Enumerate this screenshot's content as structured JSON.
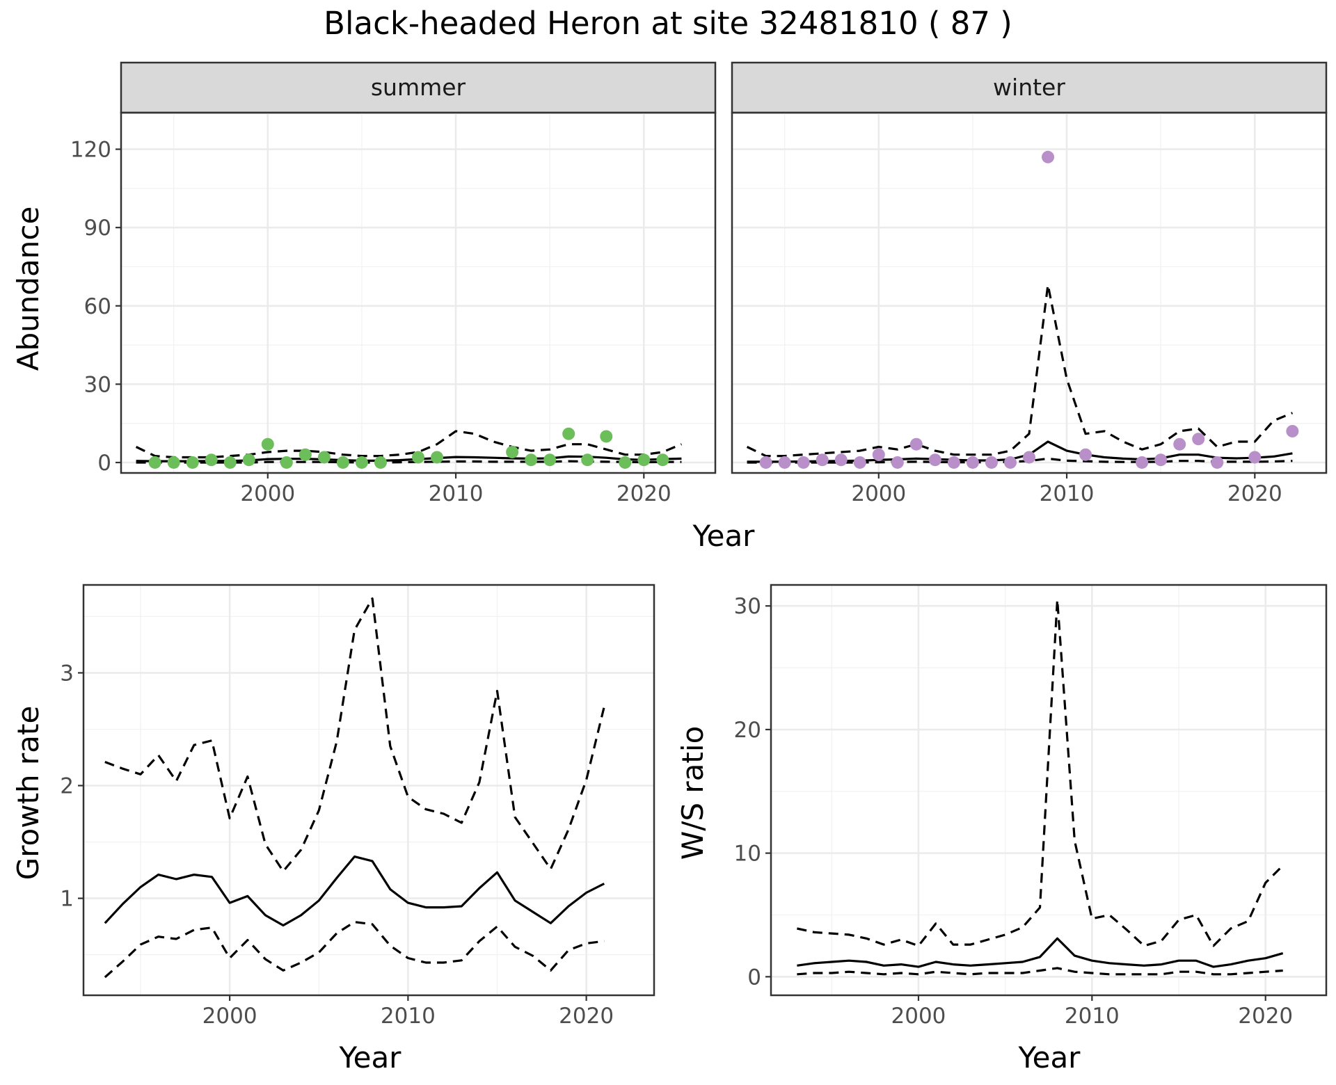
{
  "title": "Black-headed Heron at site 32481810 ( 87 )",
  "chart_data": [
    {
      "id": "abundance",
      "type": "scatter",
      "ylabel": "Abundance",
      "xlabel": "Year",
      "xlim": [
        1992.2,
        2023.8
      ],
      "ylim": [
        -4,
        134
      ],
      "xticks": [
        2000,
        2010,
        2020
      ],
      "yticks": [
        0,
        30,
        60,
        90,
        120
      ],
      "panels": [
        {
          "label": "summer",
          "point_color": "#6cbe5b",
          "points": {
            "x": [
              1994,
              1995,
              1996,
              1997,
              1998,
              1999,
              2000,
              2001,
              2002,
              2003,
              2004,
              2005,
              2006,
              2008,
              2009,
              2013,
              2014,
              2015,
              2016,
              2017,
              2018,
              2019,
              2020,
              2021
            ],
            "y": [
              0,
              0,
              0,
              1,
              0,
              1,
              7,
              0,
              3,
              2,
              0,
              0,
              0,
              2,
              2,
              4,
              1,
              1,
              11,
              1,
              10,
              0,
              1,
              1
            ]
          },
          "mean": {
            "x": [
              1993,
              1994,
              1995,
              1996,
              1997,
              1998,
              1999,
              2000,
              2001,
              2002,
              2003,
              2004,
              2005,
              2006,
              2007,
              2008,
              2009,
              2010,
              2011,
              2012,
              2013,
              2014,
              2015,
              2016,
              2017,
              2018,
              2019,
              2020,
              2021,
              2022
            ],
            "y": [
              0.6,
              0.5,
              0.5,
              0.5,
              0.6,
              0.6,
              0.8,
              1.3,
              1.4,
              1.4,
              1.2,
              0.9,
              0.7,
              0.7,
              0.9,
              1.3,
              1.7,
              2.1,
              2.0,
              1.8,
              1.6,
              1.5,
              1.6,
              2.3,
              2.2,
              1.8,
              1.2,
              1.0,
              1.3,
              1.5
            ]
          },
          "lower": {
            "x": [
              1993,
              1994,
              1995,
              1996,
              1997,
              1998,
              1999,
              2000,
              2001,
              2002,
              2003,
              2004,
              2005,
              2006,
              2007,
              2008,
              2009,
              2010,
              2011,
              2012,
              2013,
              2014,
              2015,
              2016,
              2017,
              2018,
              2019,
              2020,
              2021,
              2022
            ],
            "y": [
              0,
              0,
              0,
              0,
              0,
              0,
              0,
              0.2,
              0.2,
              0.2,
              0.2,
              0.1,
              0,
              0,
              0.1,
              0.2,
              0.3,
              0.4,
              0.4,
              0.3,
              0.3,
              0.3,
              0.3,
              0.5,
              0.4,
              0.3,
              0.2,
              0.1,
              0.2,
              0.2
            ]
          },
          "upper": {
            "x": [
              1993,
              1994,
              1995,
              1996,
              1997,
              1998,
              1999,
              2000,
              2001,
              2002,
              2003,
              2004,
              2005,
              2006,
              2007,
              2008,
              2009,
              2010,
              2011,
              2012,
              2013,
              2014,
              2015,
              2016,
              2017,
              2018,
              2019,
              2020,
              2021,
              2022
            ],
            "y": [
              6,
              2.5,
              2,
              2,
              2,
              2.5,
              3,
              4,
              4.5,
              4.5,
              4,
              3,
              2.5,
              2.5,
              3,
              4,
              7,
              12,
              11,
              8,
              6,
              4.5,
              5,
              7,
              7,
              5,
              3,
              3,
              4,
              7
            ]
          }
        },
        {
          "label": "winter",
          "point_color": "#b98fc9",
          "points": {
            "x": [
              1994,
              1995,
              1996,
              1997,
              1998,
              1999,
              2000,
              2001,
              2002,
              2003,
              2004,
              2005,
              2006,
              2007,
              2008,
              2009,
              2011,
              2014,
              2015,
              2016,
              2017,
              2018,
              2020,
              2022
            ],
            "y": [
              0,
              0,
              0,
              1,
              1,
              0,
              3,
              0,
              7,
              1,
              0,
              0,
              0,
              0,
              2,
              117,
              3,
              0,
              1,
              7,
              9,
              0,
              2,
              12
            ]
          },
          "mean": {
            "x": [
              1993,
              1994,
              1995,
              1996,
              1997,
              1998,
              1999,
              2000,
              2001,
              2002,
              2003,
              2004,
              2005,
              2006,
              2007,
              2008,
              2009,
              2010,
              2011,
              2012,
              2013,
              2014,
              2015,
              2016,
              2017,
              2018,
              2019,
              2020,
              2021,
              2022
            ],
            "y": [
              0.3,
              0.3,
              0.3,
              0.4,
              0.5,
              0.6,
              0.7,
              1.0,
              1.2,
              1.5,
              1.3,
              1.0,
              0.8,
              0.8,
              1.2,
              3.0,
              8.0,
              4.5,
              3.0,
              2.0,
              1.5,
              1.2,
              1.6,
              3.0,
              3.0,
              1.8,
              1.6,
              1.8,
              2.3,
              3.5
            ]
          },
          "lower": {
            "x": [
              1993,
              1994,
              1995,
              1996,
              1997,
              1998,
              1999,
              2000,
              2001,
              2002,
              2003,
              2004,
              2005,
              2006,
              2007,
              2008,
              2009,
              2010,
              2011,
              2012,
              2013,
              2014,
              2015,
              2016,
              2017,
              2018,
              2019,
              2020,
              2021,
              2022
            ],
            "y": [
              0,
              0,
              0,
              0,
              0,
              0,
              0,
              0.1,
              0.2,
              0.3,
              0.2,
              0.1,
              0.1,
              0.1,
              0.2,
              0.6,
              1.5,
              0.7,
              0.5,
              0.3,
              0.2,
              0.2,
              0.3,
              0.6,
              0.6,
              0.3,
              0.3,
              0.3,
              0.4,
              0.6
            ]
          },
          "upper": {
            "x": [
              1993,
              1994,
              1995,
              1996,
              1997,
              1998,
              1999,
              2000,
              2001,
              2002,
              2003,
              2004,
              2005,
              2006,
              2007,
              2008,
              2009,
              2010,
              2011,
              2012,
              2013,
              2014,
              2015,
              2016,
              2017,
              2018,
              2019,
              2020,
              2021,
              2022
            ],
            "y": [
              6,
              2.5,
              2.5,
              3,
              3.5,
              4,
              4.5,
              6,
              5,
              7,
              4.5,
              3,
              3,
              3,
              4.5,
              11,
              68,
              32,
              11,
              12,
              8,
              5,
              7,
              12,
              13,
              6,
              8,
              8,
              16,
              19
            ]
          }
        }
      ]
    },
    {
      "id": "growth",
      "type": "line",
      "ylabel": "Growth rate",
      "xlabel": "Year",
      "xlim": [
        1991.8,
        2023.8
      ],
      "ylim": [
        0.14,
        3.78
      ],
      "xticks": [
        2000,
        2010,
        2020
      ],
      "yticks": [
        1,
        2,
        3
      ],
      "mean": {
        "x": [
          1993,
          1994,
          1995,
          1996,
          1997,
          1998,
          1999,
          2000,
          2001,
          2002,
          2003,
          2004,
          2005,
          2006,
          2007,
          2008,
          2009,
          2010,
          2011,
          2012,
          2013,
          2014,
          2015,
          2016,
          2017,
          2018,
          2019,
          2020,
          2021
        ],
        "y": [
          0.78,
          0.95,
          1.1,
          1.21,
          1.17,
          1.21,
          1.19,
          0.96,
          1.02,
          0.85,
          0.76,
          0.85,
          0.98,
          1.18,
          1.37,
          1.33,
          1.08,
          0.96,
          0.92,
          0.92,
          0.93,
          1.09,
          1.23,
          0.98,
          0.88,
          0.78,
          0.93,
          1.05,
          1.13
        ]
      },
      "lower": {
        "x": [
          1993,
          1994,
          1995,
          1996,
          1997,
          1998,
          1999,
          2000,
          2001,
          2002,
          2003,
          2004,
          2005,
          2006,
          2007,
          2008,
          2009,
          2010,
          2011,
          2012,
          2013,
          2014,
          2015,
          2016,
          2017,
          2018,
          2019,
          2020,
          2021
        ],
        "y": [
          0.3,
          0.44,
          0.59,
          0.66,
          0.64,
          0.72,
          0.74,
          0.47,
          0.63,
          0.46,
          0.36,
          0.43,
          0.52,
          0.69,
          0.79,
          0.77,
          0.58,
          0.47,
          0.43,
          0.43,
          0.45,
          0.62,
          0.75,
          0.57,
          0.49,
          0.36,
          0.54,
          0.6,
          0.62
        ]
      },
      "upper": {
        "x": [
          1993,
          1994,
          1995,
          1996,
          1997,
          1998,
          1999,
          2000,
          2001,
          2002,
          2003,
          2004,
          2005,
          2006,
          2007,
          2008,
          2009,
          2010,
          2011,
          2012,
          2013,
          2014,
          2015,
          2016,
          2017,
          2018,
          2019,
          2020,
          2021
        ],
        "y": [
          2.21,
          2.15,
          2.1,
          2.27,
          2.04,
          2.36,
          2.4,
          1.71,
          2.08,
          1.48,
          1.24,
          1.43,
          1.78,
          2.39,
          3.38,
          3.66,
          2.35,
          1.9,
          1.79,
          1.75,
          1.67,
          2.03,
          2.84,
          1.72,
          1.49,
          1.26,
          1.61,
          2.05,
          2.7
        ]
      }
    },
    {
      "id": "ws_ratio",
      "type": "line",
      "ylabel": "W/S ratio",
      "xlabel": "Year",
      "xlim": [
        1991.5,
        2023.5
      ],
      "ylim": [
        -1.5,
        31.7
      ],
      "xticks": [
        2000,
        2010,
        2020
      ],
      "yticks": [
        0,
        10,
        20,
        30
      ],
      "mean": {
        "x": [
          1993,
          1994,
          1995,
          1996,
          1997,
          1998,
          1999,
          2000,
          2001,
          2002,
          2003,
          2004,
          2005,
          2006,
          2007,
          2008,
          2009,
          2010,
          2011,
          2012,
          2013,
          2014,
          2015,
          2016,
          2017,
          2018,
          2019,
          2020,
          2021
        ],
        "y": [
          0.9,
          1.1,
          1.2,
          1.3,
          1.2,
          0.9,
          1.0,
          0.8,
          1.2,
          1.0,
          0.9,
          1.0,
          1.1,
          1.2,
          1.6,
          3.1,
          1.7,
          1.3,
          1.1,
          1.0,
          0.9,
          1.0,
          1.3,
          1.3,
          0.8,
          1.0,
          1.3,
          1.5,
          1.9
        ]
      },
      "lower": {
        "x": [
          1993,
          1994,
          1995,
          1996,
          1997,
          1998,
          1999,
          2000,
          2001,
          2002,
          2003,
          2004,
          2005,
          2006,
          2007,
          2008,
          2009,
          2010,
          2011,
          2012,
          2013,
          2014,
          2015,
          2016,
          2017,
          2018,
          2019,
          2020,
          2021
        ],
        "y": [
          0.2,
          0.3,
          0.3,
          0.4,
          0.3,
          0.2,
          0.3,
          0.2,
          0.4,
          0.3,
          0.2,
          0.3,
          0.3,
          0.3,
          0.5,
          0.7,
          0.4,
          0.3,
          0.2,
          0.2,
          0.2,
          0.2,
          0.4,
          0.4,
          0.2,
          0.2,
          0.3,
          0.4,
          0.5
        ]
      },
      "upper": {
        "x": [
          1993,
          1994,
          1995,
          1996,
          1997,
          1998,
          1999,
          2000,
          2001,
          2002,
          2003,
          2004,
          2005,
          2006,
          2007,
          2008,
          2009,
          2010,
          2011,
          2012,
          2013,
          2014,
          2015,
          2016,
          2017,
          2018,
          2019,
          2020,
          2021
        ],
        "y": [
          3.9,
          3.6,
          3.5,
          3.4,
          3.1,
          2.6,
          3.0,
          2.5,
          4.3,
          2.6,
          2.6,
          3.0,
          3.4,
          4.0,
          5.6,
          30.5,
          11.0,
          4.7,
          5.0,
          3.8,
          2.5,
          2.9,
          4.6,
          5.0,
          2.5,
          3.9,
          4.5,
          7.6,
          9.0
        ]
      }
    }
  ]
}
